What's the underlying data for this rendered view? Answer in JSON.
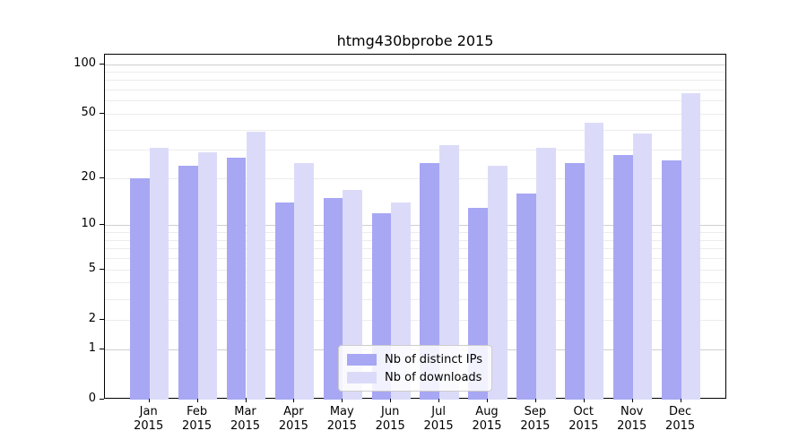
{
  "title": "htmg430bprobe 2015",
  "chart_data": {
    "type": "bar",
    "categories": [
      "Jan 2015",
      "Feb 2015",
      "Mar 2015",
      "Apr 2015",
      "May 2015",
      "Jun 2015",
      "Jul 2015",
      "Aug 2015",
      "Sep 2015",
      "Oct 2015",
      "Nov 2015",
      "Dec 2015"
    ],
    "series": [
      {
        "name": "Nb of distinct IPs",
        "color": "#a7a7f4",
        "values": [
          20,
          24,
          27,
          14,
          15,
          12,
          25,
          13,
          16,
          25,
          28,
          26
        ]
      },
      {
        "name": "Nb of downloads",
        "color": "#dbdbf9",
        "values": [
          31,
          29,
          39,
          25,
          17,
          14,
          32,
          24,
          31,
          44,
          38,
          67
        ]
      }
    ],
    "title": "htmg430bprobe 2015",
    "xlabel": "",
    "ylabel": "",
    "yscale": "log1p",
    "ylim": [
      0,
      114
    ],
    "yticks": [
      0,
      1,
      2,
      5,
      10,
      20,
      50,
      100
    ],
    "minor_gridlines": [
      2,
      3,
      4,
      5,
      6,
      7,
      8,
      9,
      20,
      30,
      40,
      50,
      60,
      70,
      80,
      90
    ],
    "major_gridlines": [
      1,
      10,
      100
    ],
    "grid": true,
    "legend_position": "lower center"
  },
  "colors": {
    "background": "#ffffff",
    "axis": "#000000",
    "grid_minor": "#ececec",
    "grid_major": "#cfcfcf",
    "legend_border": "#cccccc",
    "text": "#000000"
  }
}
